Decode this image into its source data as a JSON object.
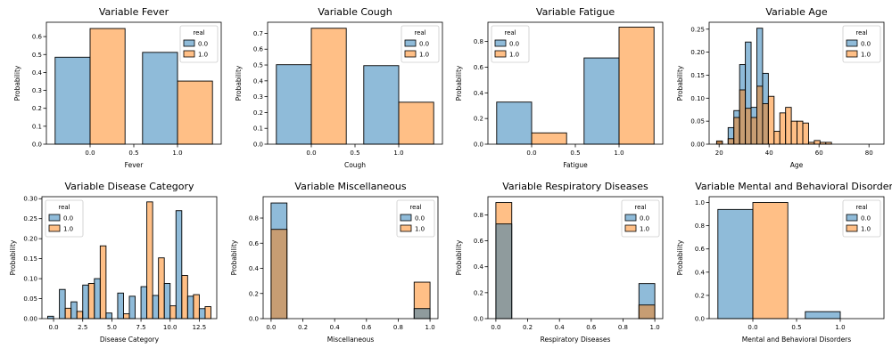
{
  "colors": {
    "c0": "#1f77b4",
    "c1": "#ff7f0e",
    "overlap": "#8c9294",
    "edge": "#000000"
  },
  "chart_data": [
    {
      "type": "bar",
      "title": "Variable Fever",
      "xlabel": "Fever",
      "ylabel": "Probability",
      "legend_title": "real",
      "legend_placement": "top-right",
      "hue_names": [
        "0.0",
        "1.0"
      ],
      "mode": "dodge",
      "xlim": [
        -0.5,
        1.5
      ],
      "ylim": [
        0,
        0.68
      ],
      "xticks": [
        0.0,
        0.5,
        1.0
      ],
      "xticklabels": [
        "0.0",
        "0.5",
        "1.0"
      ],
      "yticks": [
        0,
        0.1,
        0.2,
        0.3,
        0.4,
        0.5,
        0.6
      ],
      "yticklabels": [
        "0.0",
        "0.1",
        "0.2",
        "0.3",
        "0.4",
        "0.5",
        "0.6"
      ],
      "bars": [
        {
          "x0": -0.4,
          "x1": 0.0,
          "h0": 0.485,
          "h1": 0
        },
        {
          "x0": 0.0,
          "x1": 0.4,
          "h0": 0,
          "h1": 0.645
        },
        {
          "x0": 0.6,
          "x1": 1.0,
          "h0": 0.512,
          "h1": 0
        },
        {
          "x0": 1.0,
          "x1": 1.4,
          "h0": 0,
          "h1": 0.352
        }
      ]
    },
    {
      "type": "bar",
      "title": "Variable Cough",
      "xlabel": "Cough",
      "ylabel": "Probability",
      "legend_title": "real",
      "legend_placement": "top-right",
      "hue_names": [
        "0.0",
        "1.0"
      ],
      "mode": "dodge",
      "xlim": [
        -0.5,
        1.5
      ],
      "ylim": [
        0,
        0.77
      ],
      "xticks": [
        0.0,
        0.5,
        1.0
      ],
      "xticklabels": [
        "0.0",
        "0.5",
        "1.0"
      ],
      "yticks": [
        0,
        0.1,
        0.2,
        0.3,
        0.4,
        0.5,
        0.6,
        0.7
      ],
      "yticklabels": [
        "0.0",
        "0.1",
        "0.2",
        "0.3",
        "0.4",
        "0.5",
        "0.6",
        "0.7"
      ],
      "bars": [
        {
          "x0": -0.4,
          "x1": 0.0,
          "h0": 0.502,
          "h1": 0
        },
        {
          "x0": 0.0,
          "x1": 0.4,
          "h0": 0,
          "h1": 0.732
        },
        {
          "x0": 0.6,
          "x1": 1.0,
          "h0": 0.496,
          "h1": 0
        },
        {
          "x0": 1.0,
          "x1": 1.4,
          "h0": 0,
          "h1": 0.265
        }
      ]
    },
    {
      "type": "bar",
      "title": "Variable Fatigue",
      "xlabel": "Fatigue",
      "ylabel": "Probability",
      "legend_title": "real",
      "legend_placement": "top-left",
      "hue_names": [
        "0.0",
        "1.0"
      ],
      "mode": "dodge",
      "xlim": [
        -0.5,
        1.5
      ],
      "ylim": [
        0,
        0.95
      ],
      "xticks": [
        0.0,
        0.5,
        1.0
      ],
      "xticklabels": [
        "0.0",
        "0.5",
        "1.0"
      ],
      "yticks": [
        0,
        0.2,
        0.4,
        0.6,
        0.8
      ],
      "yticklabels": [
        "0.0",
        "0.2",
        "0.4",
        "0.6",
        "0.8"
      ],
      "bars": [
        {
          "x0": -0.4,
          "x1": 0.0,
          "h0": 0.328,
          "h1": 0
        },
        {
          "x0": 0.0,
          "x1": 0.4,
          "h0": 0,
          "h1": 0.088
        },
        {
          "x0": 0.6,
          "x1": 1.0,
          "h0": 0.672,
          "h1": 0
        },
        {
          "x0": 1.0,
          "x1": 1.4,
          "h0": 0,
          "h1": 0.912
        }
      ]
    },
    {
      "type": "bar",
      "title": "Variable Age",
      "xlabel": "Age",
      "ylabel": "Probability",
      "legend_title": "real",
      "legend_placement": "top-right",
      "hue_names": [
        "0.0",
        "1.0"
      ],
      "mode": "dodge",
      "xlim": [
        16,
        86
      ],
      "ylim": [
        0,
        0.265
      ],
      "xticks": [
        20,
        40,
        60,
        80
      ],
      "xticklabels": [
        "20",
        "40",
        "60",
        "80"
      ],
      "yticks": [
        0,
        0.05,
        0.1,
        0.15,
        0.2,
        0.25
      ],
      "yticklabels": [
        "0.00",
        "0.05",
        "0.10",
        "0.15",
        "0.20",
        "0.25"
      ],
      "bars": [
        {
          "x0": 19.0,
          "x1": 21.3,
          "h0": 0.004,
          "h1": 0.007
        },
        {
          "x0": 21.3,
          "x1": 23.6,
          "h0": 0,
          "h1": 0
        },
        {
          "x0": 23.6,
          "x1": 25.9,
          "h0": 0.036,
          "h1": 0.012
        },
        {
          "x0": 25.9,
          "x1": 28.2,
          "h0": 0.073,
          "h1": 0.058
        },
        {
          "x0": 28.2,
          "x1": 30.5,
          "h0": 0.173,
          "h1": 0.118
        },
        {
          "x0": 30.5,
          "x1": 32.8,
          "h0": 0.222,
          "h1": 0.078
        },
        {
          "x0": 32.8,
          "x1": 35.1,
          "h0": 0.08,
          "h1": 0.058
        },
        {
          "x0": 35.1,
          "x1": 37.4,
          "h0": 0.252,
          "h1": 0.126
        },
        {
          "x0": 37.4,
          "x1": 39.7,
          "h0": 0.154,
          "h1": 0.088
        },
        {
          "x0": 39.7,
          "x1": 42.0,
          "h0": 0,
          "h1": 0.104
        },
        {
          "x0": 42.0,
          "x1": 44.3,
          "h0": 0,
          "h1": 0.028
        },
        {
          "x0": 44.3,
          "x1": 46.6,
          "h0": 0,
          "h1": 0.068
        },
        {
          "x0": 46.6,
          "x1": 48.9,
          "h0": 0,
          "h1": 0.08
        },
        {
          "x0": 48.9,
          "x1": 51.2,
          "h0": 0,
          "h1": 0.05
        },
        {
          "x0": 51.2,
          "x1": 53.5,
          "h0": 0,
          "h1": 0.05
        },
        {
          "x0": 53.5,
          "x1": 55.8,
          "h0": 0,
          "h1": 0.046
        },
        {
          "x0": 55.8,
          "x1": 58.1,
          "h0": 0,
          "h1": 0.004
        },
        {
          "x0": 58.1,
          "x1": 60.4,
          "h0": 0,
          "h1": 0.008
        },
        {
          "x0": 60.4,
          "x1": 62.7,
          "h0": 0,
          "h1": 0.004
        },
        {
          "x0": 62.7,
          "x1": 65.0,
          "h0": 0,
          "h1": 0.004
        }
      ]
    },
    {
      "type": "bar",
      "title": "Variable Disease Category",
      "xlabel": "Disease Category",
      "ylabel": "Probability",
      "legend_title": "real",
      "legend_placement": "top-left",
      "hue_names": [
        "0.0",
        "1.0"
      ],
      "mode": "dodge",
      "xlim": [
        -1.0,
        14.0
      ],
      "ylim": [
        0,
        0.305
      ],
      "xticks": [
        0,
        2.5,
        5,
        7.5,
        10,
        12.5
      ],
      "xticklabels": [
        "0.0",
        "2.5",
        "5.0",
        "7.5",
        "10.0",
        "12.5"
      ],
      "yticks": [
        0,
        0.05,
        0.1,
        0.15,
        0.2,
        0.25,
        0.3
      ],
      "yticklabels": [
        "0.00",
        "0.05",
        "0.10",
        "0.15",
        "0.20",
        "0.25",
        "0.30"
      ],
      "bars": [
        {
          "x0": -0.5,
          "x1": 0.0,
          "h0": 0.006,
          "h1": 0
        },
        {
          "x0": 0.0,
          "x1": 0.5,
          "h0": 0,
          "h1": 0
        },
        {
          "x0": 0.5,
          "x1": 1.0,
          "h0": 0.073,
          "h1": 0
        },
        {
          "x0": 1.0,
          "x1": 1.5,
          "h0": 0,
          "h1": 0.026
        },
        {
          "x0": 1.5,
          "x1": 2.0,
          "h0": 0.042,
          "h1": 0
        },
        {
          "x0": 2.0,
          "x1": 2.5,
          "h0": 0,
          "h1": 0.018
        },
        {
          "x0": 2.5,
          "x1": 3.0,
          "h0": 0.084,
          "h1": 0
        },
        {
          "x0": 3.0,
          "x1": 3.5,
          "h0": 0,
          "h1": 0.088
        },
        {
          "x0": 3.5,
          "x1": 4.0,
          "h0": 0.1,
          "h1": 0
        },
        {
          "x0": 4.0,
          "x1": 4.5,
          "h0": 0,
          "h1": 0.182
        },
        {
          "x0": 4.5,
          "x1": 5.0,
          "h0": 0.014,
          "h1": 0
        },
        {
          "x0": 5.0,
          "x1": 5.5,
          "h0": 0,
          "h1": 0
        },
        {
          "x0": 5.5,
          "x1": 6.0,
          "h0": 0.064,
          "h1": 0
        },
        {
          "x0": 6.0,
          "x1": 6.5,
          "h0": 0,
          "h1": 0.012
        },
        {
          "x0": 6.5,
          "x1": 7.0,
          "h0": 0.056,
          "h1": 0
        },
        {
          "x0": 7.0,
          "x1": 7.5,
          "h0": 0,
          "h1": 0
        },
        {
          "x0": 7.5,
          "x1": 8.0,
          "h0": 0.08,
          "h1": 0
        },
        {
          "x0": 8.0,
          "x1": 8.5,
          "h0": 0,
          "h1": 0.292
        },
        {
          "x0": 8.5,
          "x1": 9.0,
          "h0": 0.058,
          "h1": 0
        },
        {
          "x0": 9.0,
          "x1": 9.5,
          "h0": 0,
          "h1": 0.152
        },
        {
          "x0": 9.5,
          "x1": 10.0,
          "h0": 0.088,
          "h1": 0
        },
        {
          "x0": 10.0,
          "x1": 10.5,
          "h0": 0,
          "h1": 0.032
        },
        {
          "x0": 10.5,
          "x1": 11.0,
          "h0": 0.27,
          "h1": 0
        },
        {
          "x0": 11.0,
          "x1": 11.5,
          "h0": 0,
          "h1": 0.108
        },
        {
          "x0": 11.5,
          "x1": 12.0,
          "h0": 0.056,
          "h1": 0
        },
        {
          "x0": 12.0,
          "x1": 12.5,
          "h0": 0,
          "h1": 0.06
        },
        {
          "x0": 12.5,
          "x1": 13.0,
          "h0": 0.025,
          "h1": 0
        },
        {
          "x0": 13.0,
          "x1": 13.5,
          "h0": 0,
          "h1": 0.03
        }
      ]
    },
    {
      "type": "bar",
      "title": "Variable Miscellaneous",
      "xlabel": "Miscellaneous",
      "ylabel": "Probability",
      "legend_title": "real",
      "legend_placement": "top-right",
      "hue_names": [
        "0.0",
        "1.0"
      ],
      "mode": "layer",
      "xlim": [
        -0.05,
        1.05
      ],
      "ylim": [
        0,
        0.97
      ],
      "xticks": [
        0,
        0.2,
        0.4,
        0.6,
        0.8,
        1.0
      ],
      "xticklabels": [
        "0.0",
        "0.2",
        "0.4",
        "0.6",
        "0.8",
        "1.0"
      ],
      "yticks": [
        0,
        0.2,
        0.4,
        0.6,
        0.8
      ],
      "yticklabels": [
        "0.0",
        "0.2",
        "0.4",
        "0.6",
        "0.8"
      ],
      "bars": [
        {
          "x0": 0.0,
          "x1": 0.1,
          "h0": 0.92,
          "h1": 0.71
        },
        {
          "x0": 0.1,
          "x1": 0.2,
          "h0": 0,
          "h1": 0
        },
        {
          "x0": 0.2,
          "x1": 0.3,
          "h0": 0,
          "h1": 0
        },
        {
          "x0": 0.3,
          "x1": 0.4,
          "h0": 0,
          "h1": 0
        },
        {
          "x0": 0.4,
          "x1": 0.5,
          "h0": 0,
          "h1": 0
        },
        {
          "x0": 0.5,
          "x1": 0.6,
          "h0": 0,
          "h1": 0
        },
        {
          "x0": 0.6,
          "x1": 0.7,
          "h0": 0,
          "h1": 0
        },
        {
          "x0": 0.7,
          "x1": 0.8,
          "h0": 0,
          "h1": 0
        },
        {
          "x0": 0.8,
          "x1": 0.9,
          "h0": 0,
          "h1": 0
        },
        {
          "x0": 0.9,
          "x1": 1.0,
          "h0": 0.08,
          "h1": 0.29
        }
      ]
    },
    {
      "type": "bar",
      "title": "Variable Respiratory Diseases",
      "xlabel": "Respiratory Diseases",
      "ylabel": "Probability",
      "legend_title": "real",
      "legend_placement": "top-right",
      "hue_names": [
        "0.0",
        "1.0"
      ],
      "mode": "layer",
      "xlim": [
        -0.05,
        1.05
      ],
      "ylim": [
        0,
        0.94
      ],
      "xticks": [
        0,
        0.2,
        0.4,
        0.6,
        0.8,
        1.0
      ],
      "xticklabels": [
        "0.0",
        "0.2",
        "0.4",
        "0.6",
        "0.8",
        "1.0"
      ],
      "yticks": [
        0,
        0.2,
        0.4,
        0.6,
        0.8
      ],
      "yticklabels": [
        "0.0",
        "0.2",
        "0.4",
        "0.6",
        "0.8"
      ],
      "bars": [
        {
          "x0": 0.0,
          "x1": 0.1,
          "h0": 0.73,
          "h1": 0.895
        },
        {
          "x0": 0.1,
          "x1": 0.2,
          "h0": 0,
          "h1": 0
        },
        {
          "x0": 0.2,
          "x1": 0.3,
          "h0": 0,
          "h1": 0
        },
        {
          "x0": 0.3,
          "x1": 0.4,
          "h0": 0,
          "h1": 0
        },
        {
          "x0": 0.4,
          "x1": 0.5,
          "h0": 0,
          "h1": 0
        },
        {
          "x0": 0.5,
          "x1": 0.6,
          "h0": 0,
          "h1": 0
        },
        {
          "x0": 0.6,
          "x1": 0.7,
          "h0": 0,
          "h1": 0
        },
        {
          "x0": 0.7,
          "x1": 0.8,
          "h0": 0,
          "h1": 0
        },
        {
          "x0": 0.8,
          "x1": 0.9,
          "h0": 0,
          "h1": 0
        },
        {
          "x0": 0.9,
          "x1": 1.0,
          "h0": 0.27,
          "h1": 0.105
        }
      ]
    },
    {
      "type": "bar",
      "title": "Variable Mental and Behavioral Disorders",
      "xlabel": "Mental and Behavioral Disorders",
      "ylabel": "Probability",
      "legend_title": "real",
      "legend_placement": "top-right",
      "hue_names": [
        "0.0",
        "1.0"
      ],
      "mode": "dodge",
      "xlim": [
        -0.5,
        1.5
      ],
      "ylim": [
        0,
        1.05
      ],
      "xticks": [
        0.0,
        0.5,
        1.0
      ],
      "xticklabels": [
        "0.0",
        "0.5",
        "1.0"
      ],
      "yticks": [
        0,
        0.2,
        0.4,
        0.6,
        0.8,
        1.0
      ],
      "yticklabels": [
        "0.0",
        "0.2",
        "0.4",
        "0.6",
        "0.8",
        "1.0"
      ],
      "bars": [
        {
          "x0": -0.4,
          "x1": 0.0,
          "h0": 0.94,
          "h1": 0
        },
        {
          "x0": 0.0,
          "x1": 0.4,
          "h0": 0,
          "h1": 1.0
        },
        {
          "x0": 0.6,
          "x1": 1.0,
          "h0": 0.06,
          "h1": 0
        },
        {
          "x0": 1.0,
          "x1": 1.4,
          "h0": 0,
          "h1": 0
        }
      ]
    }
  ]
}
